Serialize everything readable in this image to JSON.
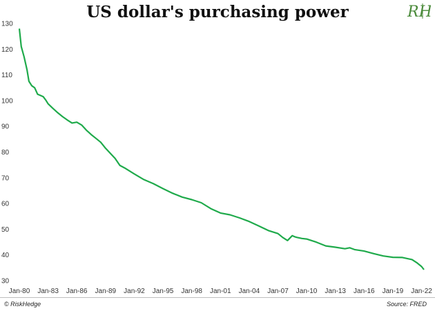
{
  "header": {
    "title": "US dollar's purchasing power"
  },
  "logo": {
    "text": "RH",
    "color": "#4a8a3a"
  },
  "footer": {
    "credit": "© RiskHedge",
    "source": "Source: FRED"
  },
  "chart_data": {
    "type": "line",
    "title": "US dollar's purchasing power",
    "xlabel": "",
    "ylabel": "",
    "ylim": [
      30,
      130
    ],
    "yticks": [
      30,
      40,
      50,
      60,
      70,
      80,
      90,
      100,
      110,
      120,
      130
    ],
    "xlim": [
      1980.0,
      2022.25
    ],
    "xticks": [
      {
        "label": "Jan-80",
        "x": 1980
      },
      {
        "label": "Jan-83",
        "x": 1983
      },
      {
        "label": "Jan-86",
        "x": 1986
      },
      {
        "label": "Jan-89",
        "x": 1989
      },
      {
        "label": "Jan-92",
        "x": 1992
      },
      {
        "label": "Jan-95",
        "x": 1995
      },
      {
        "label": "Jan-98",
        "x": 1998
      },
      {
        "label": "Jan-01",
        "x": 2001
      },
      {
        "label": "Jan-04",
        "x": 2004
      },
      {
        "label": "Jan-07",
        "x": 2007
      },
      {
        "label": "Jan-10",
        "x": 2010
      },
      {
        "label": "Jan-13",
        "x": 2013
      },
      {
        "label": "Jan-16",
        "x": 2016
      },
      {
        "label": "Jan-19",
        "x": 2019
      },
      {
        "label": "Jan-22",
        "x": 2022
      }
    ],
    "grid": false,
    "legend": "none",
    "series": [
      {
        "name": "US dollar's purchasing power",
        "color": "#1faa4b",
        "x": [
          1980.0,
          1980.2,
          1980.5,
          1980.8,
          1981.0,
          1981.3,
          1981.6,
          1981.9,
          1982.2,
          1982.5,
          1982.8,
          1983.0,
          1983.5,
          1984.0,
          1984.5,
          1985.0,
          1985.5,
          1986.0,
          1986.5,
          1987.0,
          1987.5,
          1988.0,
          1988.5,
          1989.0,
          1989.5,
          1990.0,
          1990.5,
          1991.0,
          1992.0,
          1993.0,
          1994.0,
          1995.0,
          1996.0,
          1997.0,
          1998.0,
          1999.0,
          2000.0,
          2001.0,
          2002.0,
          2003.0,
          2004.0,
          2005.0,
          2006.0,
          2007.0,
          2007.5,
          2008.0,
          2008.5,
          2008.8,
          2009.0,
          2009.5,
          2010.0,
          2011.0,
          2012.0,
          2013.0,
          2014.0,
          2014.5,
          2015.0,
          2016.0,
          2017.0,
          2018.0,
          2019.0,
          2020.0,
          2020.5,
          2021.0,
          2021.5,
          2022.0,
          2022.25
        ],
        "values": [
          128,
          121,
          117,
          112,
          107.5,
          105.8,
          105,
          102.5,
          102,
          101.5,
          100,
          98.8,
          97,
          95.3,
          93.8,
          92.5,
          91.3,
          91.6,
          90.5,
          88.5,
          86.8,
          85.3,
          83.8,
          81.5,
          79.5,
          77.5,
          74.8,
          73.8,
          71.5,
          69.3,
          67.7,
          65.8,
          64.0,
          62.5,
          61.5,
          60.3,
          58.0,
          56.3,
          55.6,
          54.4,
          53.0,
          51.3,
          49.5,
          48.3,
          46.8,
          45.6,
          47.5,
          47.0,
          46.8,
          46.4,
          46.2,
          45.0,
          43.5,
          43.0,
          42.4,
          42.8,
          42.1,
          41.5,
          40.5,
          39.6,
          39.1,
          39.0,
          38.6,
          38.2,
          37.0,
          35.5,
          34.3
        ]
      }
    ]
  }
}
